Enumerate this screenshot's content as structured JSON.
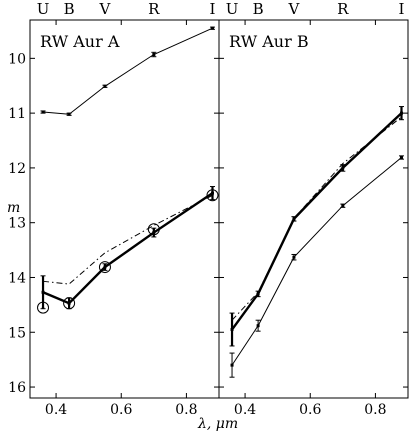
{
  "chart_data": [
    {
      "type": "line",
      "title": "RW Aur A",
      "xlabel": "λ, μm",
      "ylabel": "m",
      "xlim": [
        0.32,
        0.9
      ],
      "ylim": [
        9.3,
        16.2
      ],
      "y_inverted": true,
      "x_ticks": [
        "0.4",
        "0.6",
        "0.8"
      ],
      "y_ticks": [
        "10",
        "11",
        "12",
        "13",
        "14",
        "15",
        "16"
      ],
      "top_band_labels": [
        "U",
        "B",
        "V",
        "R",
        "I"
      ],
      "grid": false,
      "series": [
        {
          "style": "thin-solid",
          "x": [
            0.36,
            0.44,
            0.55,
            0.7,
            0.88
          ],
          "y": [
            10.98,
            11.02,
            10.51,
            9.93,
            9.45
          ],
          "err": [
            0.02,
            0.02,
            0.02,
            0.04,
            0.02
          ]
        },
        {
          "style": "thick-solid",
          "x": [
            0.36,
            0.44,
            0.55,
            0.7,
            0.88
          ],
          "y": [
            14.27,
            14.47,
            13.81,
            13.18,
            12.46
          ],
          "err": [
            0.3,
            0.1,
            0.06,
            0.08,
            0.12
          ]
        },
        {
          "style": "dash-dot",
          "x": [
            0.36,
            0.44,
            0.55,
            0.7,
            0.88
          ],
          "y": [
            14.07,
            14.12,
            13.55,
            13.05,
            12.5
          ],
          "err": [
            0,
            0,
            0,
            0,
            0
          ]
        },
        {
          "style": "open-circles",
          "x": [
            0.36,
            0.44,
            0.55,
            0.7,
            0.88
          ],
          "y": [
            14.55,
            14.47,
            13.81,
            13.12,
            12.5
          ],
          "err": [
            0,
            0,
            0,
            0,
            0
          ]
        }
      ]
    },
    {
      "type": "line",
      "title": "RW Aur B",
      "xlabel": "λ, μm",
      "ylabel": "",
      "xlim": [
        0.32,
        0.9
      ],
      "ylim": [
        9.3,
        16.2
      ],
      "y_inverted": true,
      "x_ticks": [
        "0.4",
        "0.6",
        "0.8"
      ],
      "top_band_labels": [
        "U",
        "B",
        "V",
        "R",
        "I"
      ],
      "grid": false,
      "series": [
        {
          "style": "thick-solid",
          "x": [
            0.36,
            0.44,
            0.55,
            0.7,
            0.88
          ],
          "y": [
            14.95,
            14.3,
            12.93,
            12.0,
            11.0
          ],
          "err": [
            0.3,
            0.05,
            0.04,
            0.06,
            0.12
          ]
        },
        {
          "style": "dash-dot",
          "x": [
            0.36,
            0.44,
            0.55,
            0.7,
            0.88
          ],
          "y": [
            14.78,
            14.27,
            12.92,
            11.92,
            11.07
          ],
          "err": [
            0,
            0,
            0,
            0,
            0
          ]
        },
        {
          "style": "thin-solid",
          "x": [
            0.36,
            0.44,
            0.55,
            0.7,
            0.88
          ],
          "y": [
            15.6,
            14.88,
            13.63,
            12.69,
            11.81
          ],
          "err": [
            0.22,
            0.1,
            0.05,
            0.03,
            0.03
          ]
        }
      ]
    }
  ]
}
